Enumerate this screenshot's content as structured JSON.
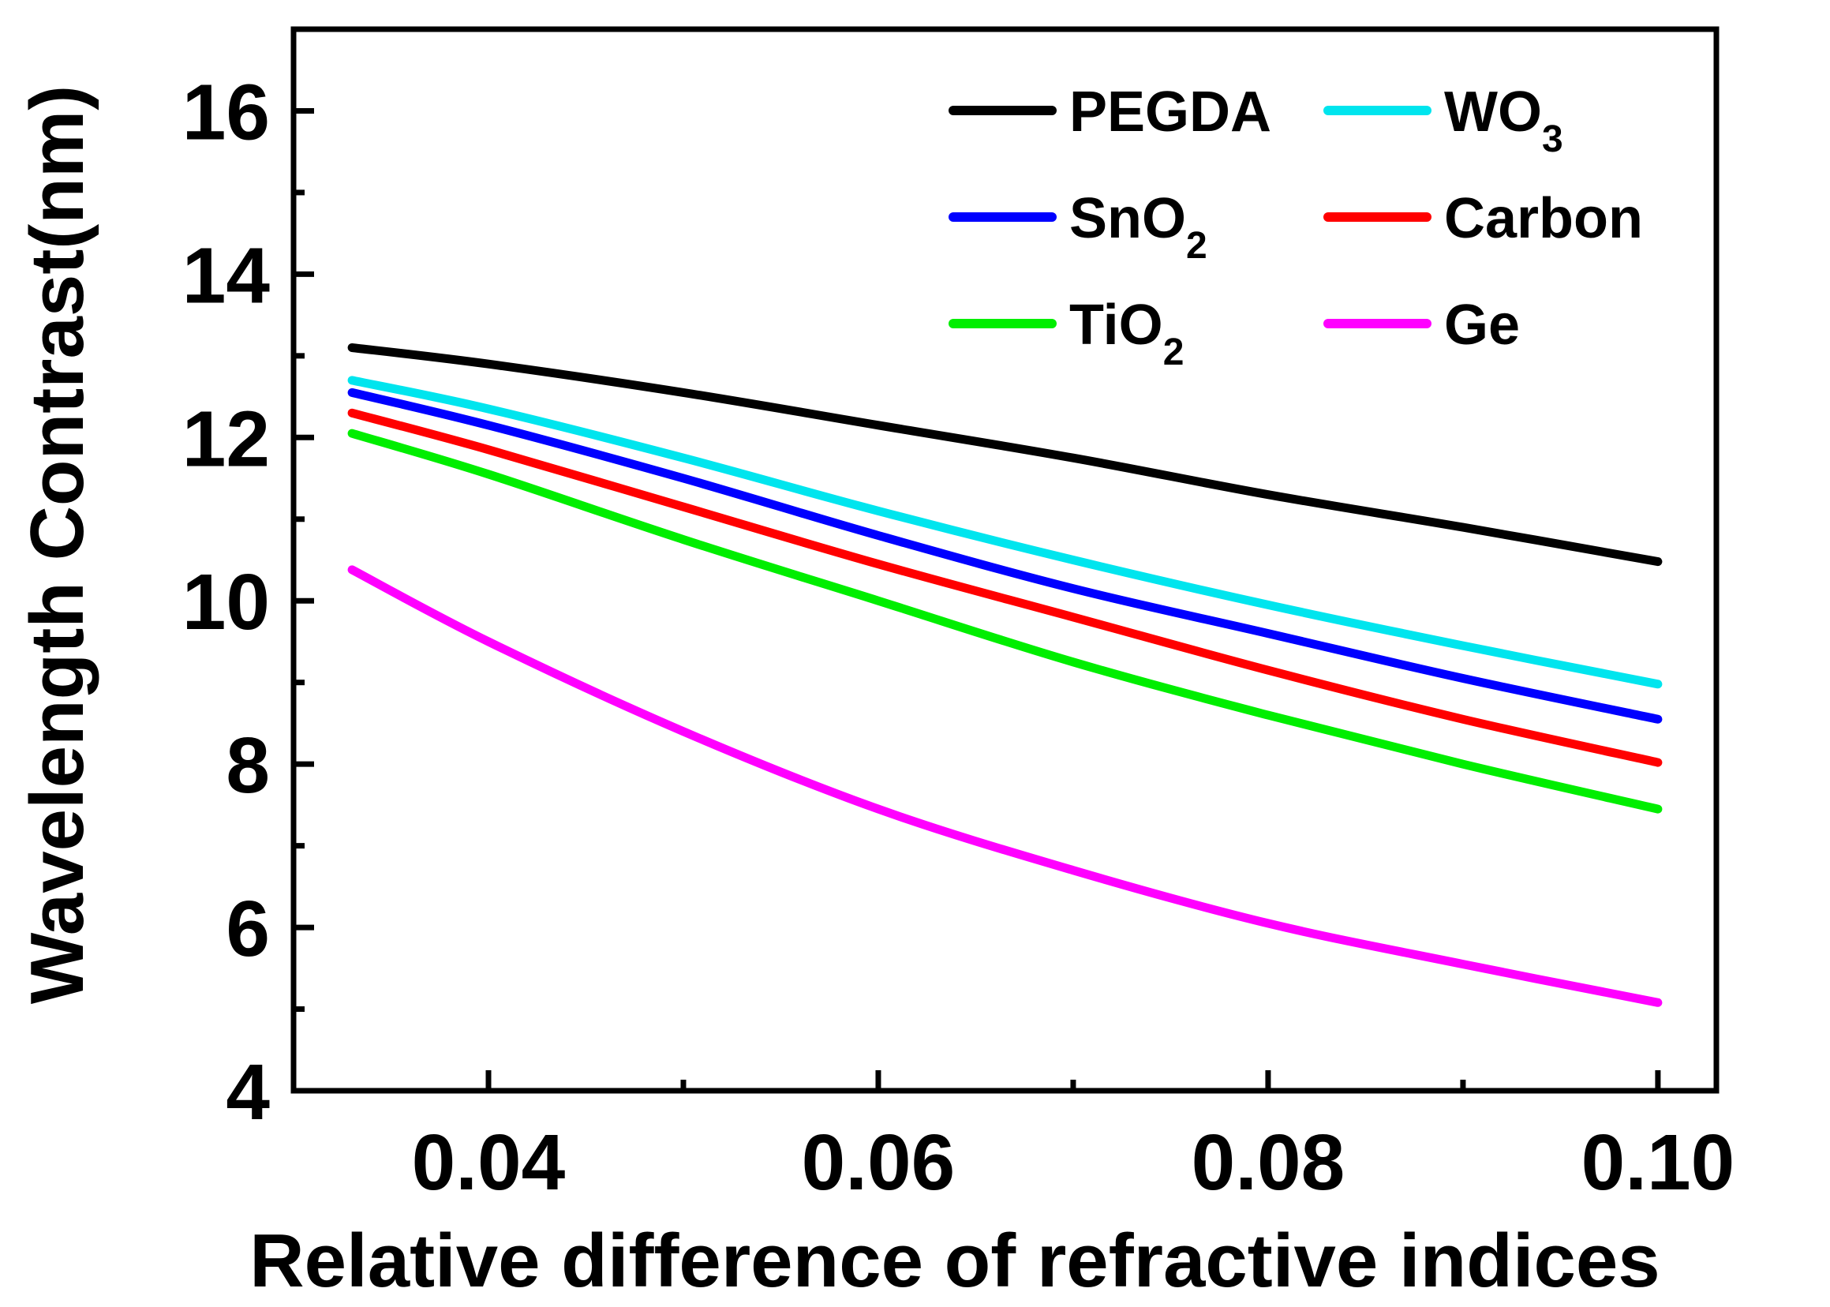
{
  "chart_data": {
    "type": "line",
    "title": "",
    "xlabel": "Relative difference of refractive indices",
    "ylabel": "Wavelength Contrast(nm)",
    "xlim": [
      0.03,
      0.103
    ],
    "ylim": [
      4,
      17
    ],
    "xticks": [
      0.04,
      0.06,
      0.08,
      0.1
    ],
    "xtick_labels": [
      "0.04",
      "0.06",
      "0.08",
      "0.10"
    ],
    "yticks": [
      4,
      6,
      8,
      10,
      12,
      14,
      16
    ],
    "ytick_labels": [
      "4",
      "6",
      "8",
      "10",
      "12",
      "14",
      "16"
    ],
    "grid": false,
    "legend_position": "top-right",
    "x": [
      0.033,
      0.04,
      0.05,
      0.06,
      0.07,
      0.08,
      0.09,
      0.1
    ],
    "series": [
      {
        "name": "PEGDA",
        "base": "PEGDA",
        "sub": "",
        "color": "#000000",
        "values": [
          13.1,
          12.9,
          12.55,
          12.15,
          11.75,
          11.3,
          10.9,
          10.48
        ]
      },
      {
        "name": "WO3",
        "base": "WO",
        "sub": "3",
        "color": "#00e5ee",
        "values": [
          12.7,
          12.35,
          11.75,
          11.1,
          10.5,
          9.95,
          9.45,
          8.98
        ]
      },
      {
        "name": "SnO2",
        "base": "SnO",
        "sub": "2",
        "color": "#0000ff",
        "values": [
          12.55,
          12.15,
          11.5,
          10.8,
          10.15,
          9.6,
          9.05,
          8.55
        ]
      },
      {
        "name": "Carbon",
        "base": "Carbon",
        "sub": "",
        "color": "#ff0000",
        "values": [
          12.3,
          11.85,
          11.15,
          10.45,
          9.8,
          9.15,
          8.55,
          8.02
        ]
      },
      {
        "name": "TiO2",
        "base": "TiO",
        "sub": "2",
        "color": "#00ee00",
        "values": [
          12.05,
          11.55,
          10.75,
          10.0,
          9.25,
          8.6,
          8.0,
          7.45
        ]
      },
      {
        "name": "Ge",
        "base": "Ge",
        "sub": "",
        "color": "#ff00ff",
        "values": [
          10.38,
          9.5,
          8.4,
          7.45,
          6.7,
          6.05,
          5.55,
          5.08
        ]
      }
    ]
  }
}
